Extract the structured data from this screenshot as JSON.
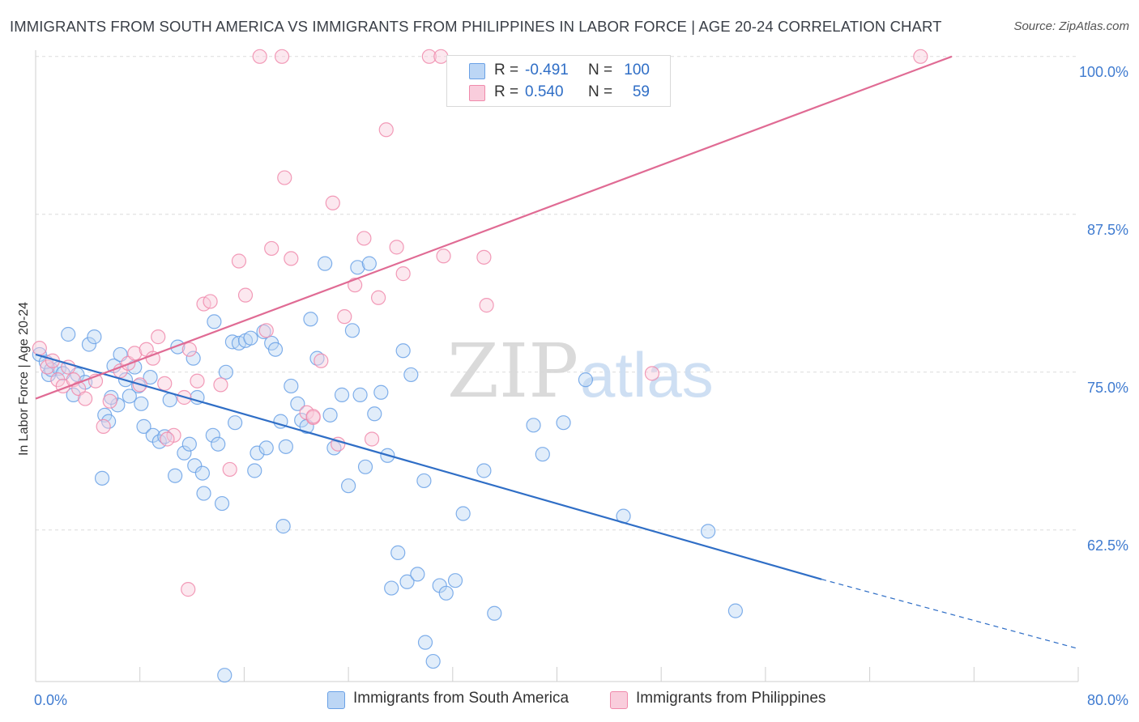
{
  "title": "IMMIGRANTS FROM SOUTH AMERICA VS IMMIGRANTS FROM PHILIPPINES IN LABOR FORCE | AGE 20-24 CORRELATION CHART",
  "source": "Source: ZipAtlas.com",
  "watermark": {
    "zip": "ZIP",
    "atlas": "atlas"
  },
  "legend": {
    "rows": [
      {
        "r_label": "R =",
        "r_value": "-0.491",
        "n_label": "N =",
        "n_value": "100",
        "color": "#a9c8f0"
      },
      {
        "r_label": "R =",
        "r_value": "0.540",
        "n_label": "N =",
        "n_value": "59",
        "color": "#f6bcd0"
      }
    ]
  },
  "chart_data": {
    "type": "scatter",
    "ylabel": "In Labor Force | Age 20-24",
    "xlim": [
      0,
      80
    ],
    "ylim": [
      50.5,
      100.5
    ],
    "x_tick_labels": [
      "0.0%",
      "80.0%"
    ],
    "y_ticks": [
      {
        "value": 100,
        "label": "100.0%"
      },
      {
        "value": 87.5,
        "label": "87.5%"
      },
      {
        "value": 75,
        "label": "75.0%"
      },
      {
        "value": 62.5,
        "label": "62.5%"
      }
    ],
    "grid": true,
    "series": [
      {
        "name": "Immigrants from South America",
        "color": "#6aa1e6",
        "fill": "#bcd6f5",
        "trend": {
          "color": "#2f6ec6",
          "x0": 0,
          "y0": 76.4,
          "x1": 60.3,
          "y1": 58.6,
          "dash_to_x": 80,
          "dash_to_y": 53.1
        },
        "points": [
          [
            0.3,
            76.4
          ],
          [
            0.8,
            75.8
          ],
          [
            1.0,
            74.8
          ],
          [
            1.2,
            75.2
          ],
          [
            1.8,
            75.3
          ],
          [
            2.1,
            74.9
          ],
          [
            2.5,
            78.0
          ],
          [
            2.9,
            73.2
          ],
          [
            3.2,
            74.8
          ],
          [
            3.8,
            74.2
          ],
          [
            4.1,
            77.2
          ],
          [
            4.5,
            77.8
          ],
          [
            5.1,
            66.6
          ],
          [
            5.3,
            71.6
          ],
          [
            5.6,
            71.1
          ],
          [
            6.0,
            75.5
          ],
          [
            6.3,
            72.4
          ],
          [
            6.5,
            76.4
          ],
          [
            6.9,
            74.4
          ],
          [
            7.2,
            73.1
          ],
          [
            7.6,
            75.4
          ],
          [
            7.9,
            73.9
          ],
          [
            8.1,
            72.5
          ],
          [
            8.8,
            74.6
          ],
          [
            8.3,
            70.7
          ],
          [
            9.0,
            70.0
          ],
          [
            9.5,
            69.5
          ],
          [
            9.9,
            69.9
          ],
          [
            10.7,
            66.8
          ],
          [
            10.9,
            77.0
          ],
          [
            11.4,
            68.6
          ],
          [
            11.8,
            69.3
          ],
          [
            12.1,
            76.1
          ],
          [
            12.2,
            67.6
          ],
          [
            12.4,
            73.0
          ],
          [
            12.8,
            67.0
          ],
          [
            12.9,
            65.4
          ],
          [
            13.6,
            70.0
          ],
          [
            13.7,
            79.0
          ],
          [
            14.0,
            69.3
          ],
          [
            14.3,
            64.6
          ],
          [
            14.6,
            75.0
          ],
          [
            15.1,
            77.4
          ],
          [
            15.3,
            71.0
          ],
          [
            15.6,
            77.3
          ],
          [
            16.1,
            77.5
          ],
          [
            16.5,
            77.7
          ],
          [
            16.8,
            67.2
          ],
          [
            17.0,
            68.6
          ],
          [
            17.5,
            78.2
          ],
          [
            17.7,
            69.0
          ],
          [
            18.1,
            77.3
          ],
          [
            18.4,
            76.8
          ],
          [
            18.8,
            71.1
          ],
          [
            19.0,
            62.8
          ],
          [
            19.2,
            69.1
          ],
          [
            19.6,
            73.9
          ],
          [
            20.1,
            72.5
          ],
          [
            20.4,
            71.2
          ],
          [
            20.8,
            70.7
          ],
          [
            21.1,
            79.2
          ],
          [
            21.6,
            76.1
          ],
          [
            22.2,
            83.6
          ],
          [
            22.6,
            71.6
          ],
          [
            22.9,
            69.0
          ],
          [
            23.5,
            73.2
          ],
          [
            24.0,
            66.0
          ],
          [
            24.3,
            78.3
          ],
          [
            24.7,
            83.3
          ],
          [
            24.9,
            73.2
          ],
          [
            25.3,
            67.5
          ],
          [
            25.6,
            83.6
          ],
          [
            26.0,
            71.7
          ],
          [
            26.5,
            73.4
          ],
          [
            27.0,
            68.4
          ],
          [
            27.3,
            57.9
          ],
          [
            27.8,
            60.7
          ],
          [
            28.2,
            76.7
          ],
          [
            28.5,
            58.4
          ],
          [
            28.8,
            74.8
          ],
          [
            29.3,
            59.0
          ],
          [
            29.8,
            66.4
          ],
          [
            29.9,
            53.6
          ],
          [
            30.5,
            52.1
          ],
          [
            31.0,
            58.1
          ],
          [
            31.5,
            57.5
          ],
          [
            32.2,
            58.5
          ],
          [
            32.8,
            63.8
          ],
          [
            34.4,
            67.2
          ],
          [
            35.2,
            55.9
          ],
          [
            38.2,
            70.8
          ],
          [
            38.9,
            68.5
          ],
          [
            40.5,
            71.0
          ],
          [
            42.2,
            74.4
          ],
          [
            45.1,
            63.6
          ],
          [
            51.6,
            62.4
          ],
          [
            53.7,
            56.1
          ],
          [
            14.5,
            51.0
          ],
          [
            5.8,
            73.0
          ],
          [
            10.3,
            72.8
          ]
        ]
      },
      {
        "name": "Immigrants from Philippines",
        "color": "#f08aab",
        "fill": "#f9cddc",
        "trend": {
          "color": "#e06b94",
          "x0": 0,
          "y0": 72.9,
          "x1": 70.3,
          "y1": 100.0
        },
        "points": [
          [
            0.3,
            76.9
          ],
          [
            0.9,
            75.4
          ],
          [
            1.3,
            75.9
          ],
          [
            1.7,
            74.4
          ],
          [
            2.1,
            73.9
          ],
          [
            2.5,
            75.4
          ],
          [
            2.9,
            74.4
          ],
          [
            3.3,
            73.7
          ],
          [
            3.8,
            72.9
          ],
          [
            4.6,
            74.3
          ],
          [
            5.2,
            70.7
          ],
          [
            5.7,
            72.7
          ],
          [
            6.5,
            75.1
          ],
          [
            7.1,
            75.7
          ],
          [
            7.6,
            76.5
          ],
          [
            8.0,
            74.0
          ],
          [
            8.5,
            76.8
          ],
          [
            9.0,
            76.1
          ],
          [
            9.4,
            77.8
          ],
          [
            9.9,
            74.1
          ],
          [
            10.6,
            70.0
          ],
          [
            11.4,
            73.0
          ],
          [
            11.8,
            76.8
          ],
          [
            12.4,
            74.3
          ],
          [
            12.9,
            80.4
          ],
          [
            13.4,
            80.6
          ],
          [
            14.2,
            74.0
          ],
          [
            14.9,
            67.3
          ],
          [
            15.6,
            83.8
          ],
          [
            16.1,
            81.1
          ],
          [
            17.7,
            78.3
          ],
          [
            18.1,
            84.8
          ],
          [
            19.1,
            90.4
          ],
          [
            19.6,
            84.0
          ],
          [
            20.8,
            71.8
          ],
          [
            21.3,
            71.4
          ],
          [
            21.9,
            75.9
          ],
          [
            22.8,
            88.4
          ],
          [
            23.2,
            69.3
          ],
          [
            23.7,
            79.4
          ],
          [
            24.5,
            81.9
          ],
          [
            25.2,
            85.6
          ],
          [
            25.8,
            69.7
          ],
          [
            26.3,
            80.9
          ],
          [
            26.9,
            94.2
          ],
          [
            27.7,
            84.9
          ],
          [
            28.2,
            82.8
          ],
          [
            31.3,
            84.2
          ],
          [
            34.4,
            84.1
          ],
          [
            34.6,
            80.3
          ],
          [
            17.2,
            100.0
          ],
          [
            18.9,
            100.0
          ],
          [
            30.2,
            100.0
          ],
          [
            31.1,
            100.0
          ],
          [
            11.7,
            57.8
          ],
          [
            47.3,
            74.9
          ],
          [
            67.9,
            100.0
          ],
          [
            21.3,
            71.5
          ],
          [
            10.1,
            69.7
          ]
        ]
      }
    ]
  },
  "bottom_legend": {
    "items": [
      {
        "label": "Immigrants from South America",
        "color": "#bcd6f5",
        "border": "#6aa1e6"
      },
      {
        "label": "Immigrants from Philippines",
        "color": "#f9cddc",
        "border": "#f08aab"
      }
    ]
  }
}
